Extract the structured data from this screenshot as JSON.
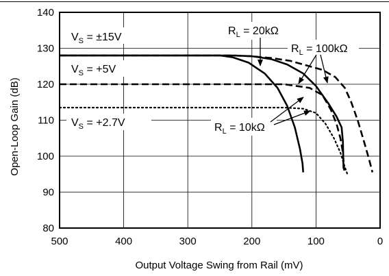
{
  "chart_data": {
    "type": "line",
    "xlabel": "Output Voltage Swing from Rail (mV)",
    "ylabel": "Open-Loop Gain (dB)",
    "xlim": [
      500,
      0
    ],
    "ylim": [
      80,
      140
    ],
    "x_reversed": true,
    "grid": true,
    "xticks": [
      "500",
      "400",
      "300",
      "200",
      "100",
      "0"
    ],
    "yticks": [
      "80",
      "90",
      "100",
      "110",
      "120",
      "130",
      "140"
    ],
    "series": [
      {
        "vs": "±15V",
        "rl": "10kΩ",
        "style": "solid",
        "x": [
          500,
          250,
          230,
          205,
          180,
          160,
          145,
          133,
          125,
          121,
          120
        ],
        "y": [
          128,
          128,
          127.5,
          126,
          123,
          119,
          114,
          108,
          102,
          98,
          95.5
        ]
      },
      {
        "vs": "±15V",
        "rl": "20kΩ",
        "style": "solid",
        "x": [
          500,
          230,
          200,
          170,
          145,
          120,
          100,
          80,
          68,
          60,
          58,
          57
        ],
        "y": [
          128,
          128,
          127.8,
          127,
          125.5,
          123,
          119.5,
          114.5,
          111,
          108,
          104,
          96.5
        ]
      },
      {
        "vs": "±15V",
        "rl": "100kΩ",
        "style": "dash",
        "x": [
          500,
          230,
          200,
          170,
          140,
          110,
          90,
          70,
          55,
          45,
          35,
          25,
          17,
          12
        ],
        "y": [
          128,
          128,
          127.8,
          127.3,
          126.5,
          125,
          124,
          122,
          119,
          115,
          110,
          104,
          99,
          95.5
        ]
      },
      {
        "vs": "+5V",
        "rl": "10kΩ",
        "style": "dash",
        "x": [
          500,
          300,
          150,
          110,
          90,
          77,
          68,
          62,
          58,
          56
        ],
        "y": [
          120,
          120,
          120,
          119,
          117,
          113,
          109,
          105,
          101,
          96
        ]
      },
      {
        "vs": "+2.7V",
        "rl": "10kΩ",
        "style": "dot",
        "x": [
          500,
          300,
          150,
          120,
          100,
          85,
          72,
          62,
          55,
          50
        ],
        "y": [
          113.5,
          113.5,
          113.5,
          113.2,
          112,
          109,
          105,
          101,
          97,
          94.5
        ]
      }
    ],
    "annotations": {
      "vs_15": {
        "main": "V",
        "sub": "S",
        "tail": " = ±15V"
      },
      "vs_5": {
        "main": "V",
        "sub": "S",
        "tail": " = +5V"
      },
      "vs_27": {
        "main": "V",
        "sub": "S",
        "tail": " = +2.7V"
      },
      "rl_20k": {
        "main": "R",
        "sub": "L",
        "tail": " = 20kΩ"
      },
      "rl_100k": {
        "main": "R",
        "sub": "L",
        "tail": " = 100kΩ"
      },
      "rl_10k": {
        "main": "R",
        "sub": "L",
        "tail": " = 10kΩ"
      }
    }
  }
}
